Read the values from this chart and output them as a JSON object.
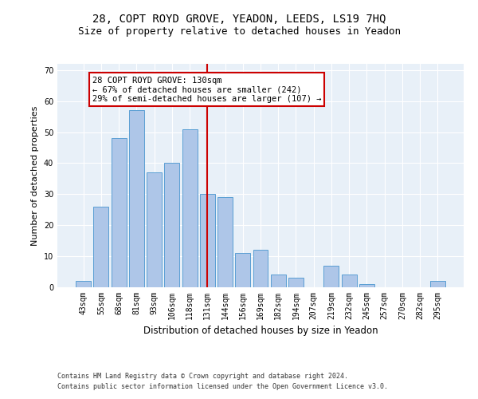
{
  "title1": "28, COPT ROYD GROVE, YEADON, LEEDS, LS19 7HQ",
  "title2": "Size of property relative to detached houses in Yeadon",
  "xlabel": "Distribution of detached houses by size in Yeadon",
  "ylabel": "Number of detached properties",
  "categories": [
    "43sqm",
    "55sqm",
    "68sqm",
    "81sqm",
    "93sqm",
    "106sqm",
    "118sqm",
    "131sqm",
    "144sqm",
    "156sqm",
    "169sqm",
    "182sqm",
    "194sqm",
    "207sqm",
    "219sqm",
    "232sqm",
    "245sqm",
    "257sqm",
    "270sqm",
    "282sqm",
    "295sqm"
  ],
  "values": [
    2,
    26,
    48,
    57,
    37,
    40,
    51,
    30,
    29,
    11,
    12,
    4,
    3,
    0,
    7,
    4,
    1,
    0,
    0,
    0,
    2
  ],
  "bar_color": "#aec6e8",
  "bar_edge_color": "#5a9fd4",
  "vline_x_index": 7,
  "vline_color": "#cc0000",
  "annotation_text": "28 COPT ROYD GROVE: 130sqm\n← 67% of detached houses are smaller (242)\n29% of semi-detached houses are larger (107) →",
  "annotation_box_color": "#ffffff",
  "annotation_box_edge_color": "#cc0000",
  "ylim": [
    0,
    72
  ],
  "yticks": [
    0,
    10,
    20,
    30,
    40,
    50,
    60,
    70
  ],
  "background_color": "#e8f0f8",
  "footer_line1": "Contains HM Land Registry data © Crown copyright and database right 2024.",
  "footer_line2": "Contains public sector information licensed under the Open Government Licence v3.0.",
  "title1_fontsize": 10,
  "title2_fontsize": 9,
  "xlabel_fontsize": 8.5,
  "ylabel_fontsize": 8,
  "tick_fontsize": 7,
  "annot_fontsize": 7.5,
  "footer_fontsize": 6
}
